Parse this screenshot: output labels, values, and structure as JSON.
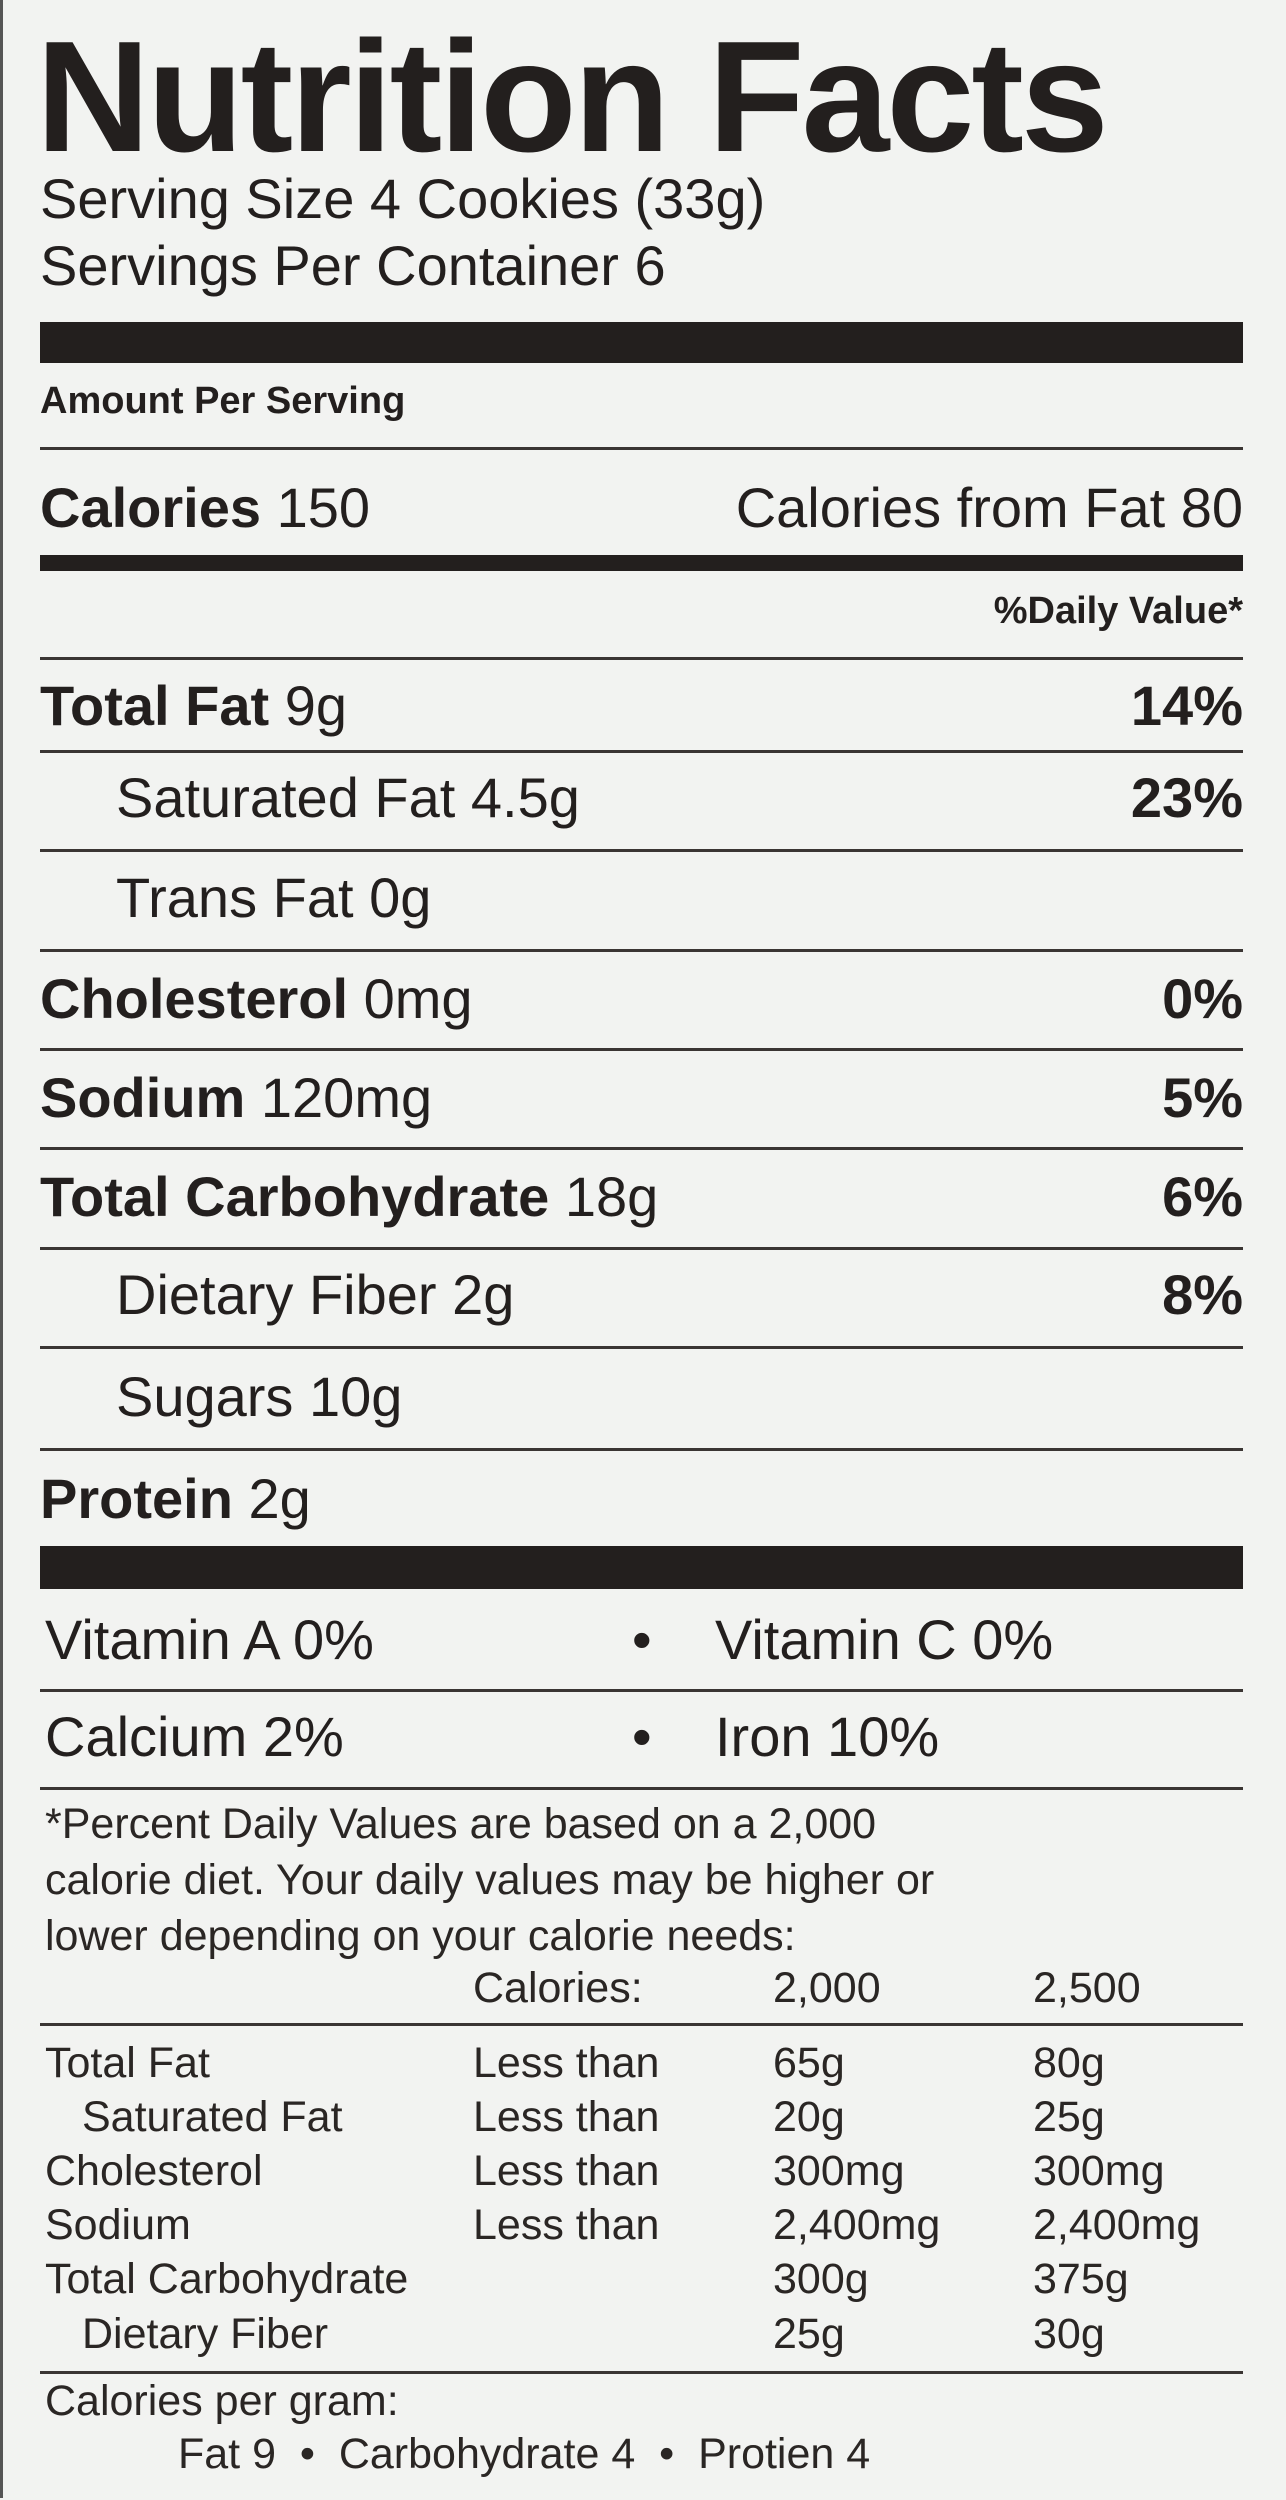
{
  "title": "Nutrition Facts",
  "serving_size": "Serving Size 4 Cookies (33g)",
  "servings_per_container": "Servings Per Container 6",
  "amount_per_serving": "Amount Per Serving",
  "calories": {
    "label": "Calories",
    "value": "150",
    "from_fat": "Calories from Fat 80"
  },
  "daily_value_header": "%Daily Value*",
  "nutrients": [
    {
      "label": "Total Fat",
      "amount": "9g",
      "dv": "14%"
    },
    {
      "label": "Saturated Fat",
      "amount": "4.5g",
      "dv": "23%"
    },
    {
      "label": "Trans Fat",
      "amount": "0g",
      "dv": ""
    },
    {
      "label": "Cholesterol",
      "amount": "0mg",
      "dv": "0%"
    },
    {
      "label": "Sodium",
      "amount": "120mg",
      "dv": "5%"
    },
    {
      "label": "Total Carbohydrate",
      "amount": "18g",
      "dv": "6%"
    },
    {
      "label": "Dietary Fiber",
      "amount": "2g",
      "dv": "8%"
    },
    {
      "label": "Sugars",
      "amount": "10g",
      "dv": ""
    },
    {
      "label": "Protein",
      "amount": "2g",
      "dv": ""
    }
  ],
  "vitamins": {
    "vitamin_a": "Vitamin A 0%",
    "vitamin_c": "Vitamin C 0%",
    "calcium": "Calcium 2%",
    "iron": "Iron 10%",
    "bullet": "•"
  },
  "footnote": [
    "*Percent Daily Values are based on a 2,000",
    "calorie diet. Your daily values may be higher or",
    "lower depending on your calorie needs:"
  ],
  "dv_table": {
    "header": [
      "Calories:",
      "2,000",
      "2,500"
    ],
    "rows": [
      [
        "Total Fat",
        "Less than",
        "65g",
        "80g"
      ],
      [
        "Saturated Fat",
        "Less than",
        "20g",
        "25g"
      ],
      [
        "Cholesterol",
        "Less than",
        "300mg",
        "300mg"
      ],
      [
        "Sodium",
        "Less than",
        "2,400mg",
        "2,400mg"
      ],
      [
        "Total Carbohydrate",
        "",
        "300g",
        "375g"
      ],
      [
        "Dietary Fiber",
        "",
        "25g",
        "30g"
      ]
    ]
  },
  "calories_per_gram": {
    "label": "Calories per gram:",
    "values": "Fat 9  •  Carbohydrate 4  •  Protien 4"
  }
}
